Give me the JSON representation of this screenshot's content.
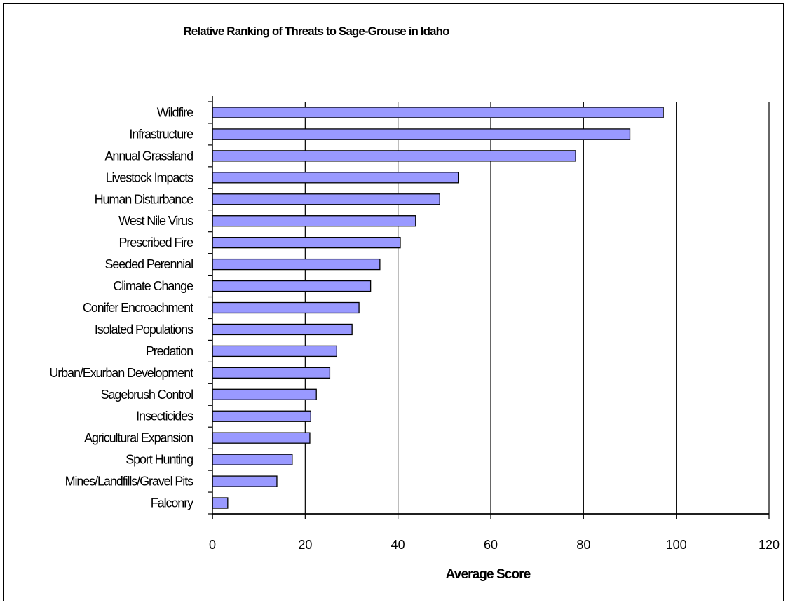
{
  "chart_data": {
    "type": "bar",
    "orientation": "horizontal",
    "title": "Relative Ranking of Threats to Sage-Grouse in Idaho",
    "xlabel": "Average Score",
    "ylabel": "",
    "xlim": [
      0,
      120
    ],
    "xticks": [
      "0",
      "20",
      "40",
      "60",
      "80",
      "100",
      "120"
    ],
    "grid": "vertical",
    "legend": "none",
    "bar_color": "#9999ff",
    "categories": [
      "Wildfire",
      "Infrastructure",
      "Annual Grassland",
      "Livestock Impacts",
      "Human Disturbance",
      "West Nile Virus",
      "Prescribed Fire",
      "Seeded Perennial",
      "Climate Change",
      "Conifer Encroachment",
      "Isolated Populations",
      "Predation",
      "Urban/Exurban Development",
      "Sagebrush Control",
      "Insecticides",
      "Agricultural Expansion",
      "Sport Hunting",
      "Mines/Landfills/Gravel Pits",
      "Falconry"
    ],
    "values": [
      97.2,
      90,
      78.3,
      53.1,
      49,
      43.8,
      40.5,
      36.1,
      34.1,
      31.6,
      30.1,
      26.8,
      25.3,
      22.4,
      21.2,
      21,
      17.2,
      13.9,
      3.3
    ]
  }
}
